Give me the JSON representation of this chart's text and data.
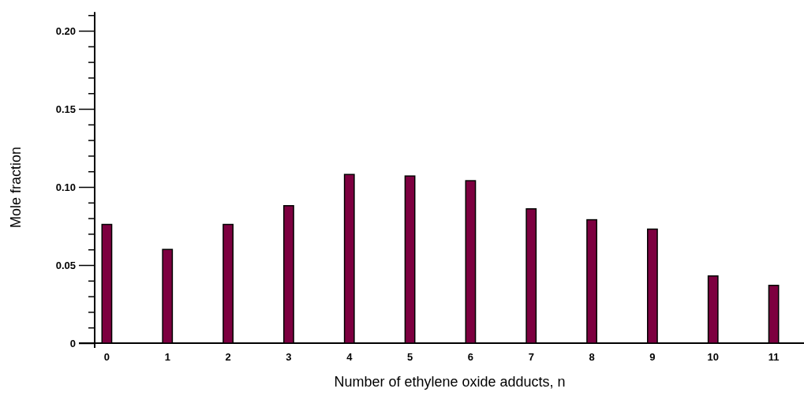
{
  "chart_data": {
    "type": "bar",
    "xlabel": "Number of ethylene oxide adducts, n",
    "ylabel": "Mole fraction",
    "categories": [
      "0",
      "1",
      "2",
      "3",
      "4",
      "5",
      "6",
      "7",
      "8",
      "9",
      "10",
      "11"
    ],
    "values": [
      0.076,
      0.06,
      0.076,
      0.088,
      0.108,
      0.107,
      0.104,
      0.086,
      0.079,
      0.073,
      0.043,
      0.037
    ],
    "color": "#7d0040",
    "ylim": [
      0,
      0.212
    ],
    "yticks": [
      0,
      {
        "value": 0.01,
        "label": null
      },
      {
        "value": 0.02,
        "label": null
      },
      {
        "value": 0.03,
        "label": null
      },
      {
        "value": 0.04,
        "label": null
      },
      0.05,
      {
        "value": 0.06,
        "label": null
      },
      {
        "value": 0.07,
        "label": null
      },
      {
        "value": 0.08,
        "label": null
      },
      {
        "value": 0.09,
        "label": null
      },
      {
        "value": 0.1,
        "label": "0.10"
      },
      {
        "value": 0.11,
        "label": null
      },
      {
        "value": 0.12,
        "label": null
      },
      {
        "value": 0.13,
        "label": null
      },
      {
        "value": 0.14,
        "label": null
      },
      0.15,
      {
        "value": 0.16,
        "label": null
      },
      {
        "value": 0.17,
        "label": null
      },
      {
        "value": 0.18,
        "label": null
      },
      {
        "value": 0.19,
        "label": null
      },
      {
        "value": 0.2,
        "label": "0.20"
      },
      {
        "value": 0.21,
        "label": null
      }
    ],
    "grid": false
  }
}
